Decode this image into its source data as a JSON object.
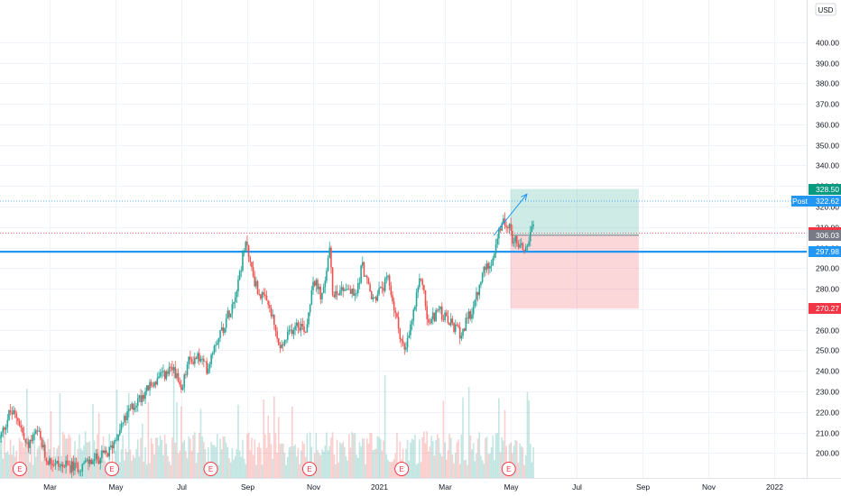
{
  "currency": "USD",
  "chart_data": {
    "type": "candlestick",
    "x_ticks": [
      "Mar",
      "May",
      "Jul",
      "Sep",
      "Nov",
      "2021",
      "Mar",
      "May",
      "Jul",
      "Sep",
      "Nov",
      "2022"
    ],
    "x_tick_indices": [
      0,
      2,
      4,
      6,
      8,
      10,
      12,
      14,
      16,
      18,
      20,
      22
    ],
    "x_month_range": [
      -1.5,
      23.0
    ],
    "y_ticks": [
      200,
      210,
      220,
      230,
      240,
      250,
      260,
      270,
      280,
      290,
      300,
      310,
      320,
      330,
      340,
      350,
      360,
      370,
      380,
      390,
      400
    ],
    "ylim": [
      194,
      410
    ],
    "grid": true,
    "price_levels": [
      {
        "label": "",
        "value": "328.50",
        "price": 328.5,
        "color": "#089981"
      },
      {
        "label": "Post",
        "value": "322.62",
        "price": 322.62,
        "color": "#2196f3"
      },
      {
        "label": "",
        "value": "307.10",
        "price": 307.1,
        "color": "#f23645"
      },
      {
        "label": "",
        "value": "306.03",
        "price": 306.03,
        "color": "#787b86"
      },
      {
        "label": "",
        "value": "297.98",
        "price": 297.98,
        "color": "#2196f3"
      },
      {
        "label": "",
        "value": "270.27",
        "price": 270.27,
        "color": "#f23645"
      }
    ],
    "support_line": 297.98,
    "position": {
      "entry": 306.03,
      "target": 328.5,
      "stop": 270.27,
      "start_month": 14.0,
      "end_month": 17.9
    },
    "earnings_markers": [
      {
        "month": -0.9,
        "label": "E"
      },
      {
        "month": 1.9,
        "label": "E"
      },
      {
        "month": 4.9,
        "label": "E"
      },
      {
        "month": 7.9,
        "label": "E"
      },
      {
        "month": 10.7,
        "label": "E"
      },
      {
        "month": 13.95,
        "label": "E"
      }
    ],
    "close_anchors": [
      [
        -1.5,
        207
      ],
      [
        -1.2,
        220
      ],
      [
        -0.95,
        217
      ],
      [
        -0.7,
        203
      ],
      [
        -0.35,
        210
      ],
      [
        -0.1,
        197
      ],
      [
        0.3,
        194
      ],
      [
        0.8,
        193
      ],
      [
        1.3,
        196
      ],
      [
        1.8,
        200
      ],
      [
        2.1,
        211
      ],
      [
        2.5,
        222
      ],
      [
        2.9,
        230
      ],
      [
        3.3,
        236
      ],
      [
        3.8,
        241
      ],
      [
        4.0,
        228
      ],
      [
        4.2,
        244
      ],
      [
        4.5,
        247
      ],
      [
        4.8,
        241
      ],
      [
        5.0,
        253
      ],
      [
        5.3,
        262
      ],
      [
        5.6,
        275
      ],
      [
        5.9,
        297
      ],
      [
        6.0,
        303
      ],
      [
        6.1,
        292
      ],
      [
        6.3,
        280
      ],
      [
        6.7,
        270
      ],
      [
        7.0,
        250
      ],
      [
        7.5,
        264
      ],
      [
        7.8,
        260
      ],
      [
        8.0,
        285
      ],
      [
        8.3,
        275
      ],
      [
        8.5,
        300
      ],
      [
        8.6,
        278
      ],
      [
        9.0,
        281
      ],
      [
        9.3,
        276
      ],
      [
        9.5,
        292
      ],
      [
        9.8,
        274
      ],
      [
        10.3,
        284
      ],
      [
        10.5,
        268
      ],
      [
        10.8,
        248
      ],
      [
        11.3,
        287
      ],
      [
        11.5,
        262
      ],
      [
        11.8,
        270
      ],
      [
        12.1,
        264
      ],
      [
        12.5,
        258
      ],
      [
        12.8,
        268
      ],
      [
        13.0,
        277
      ],
      [
        13.2,
        289
      ],
      [
        13.5,
        296
      ],
      [
        13.7,
        310
      ],
      [
        13.9,
        313
      ],
      [
        14.05,
        305
      ],
      [
        14.25,
        302
      ],
      [
        14.45,
        299
      ],
      [
        14.6,
        306
      ],
      [
        14.72,
        310
      ]
    ],
    "trend_arrow": {
      "x1_month": 13.5,
      "y1": 306,
      "x2_month": 14.5,
      "y2": 326
    }
  }
}
